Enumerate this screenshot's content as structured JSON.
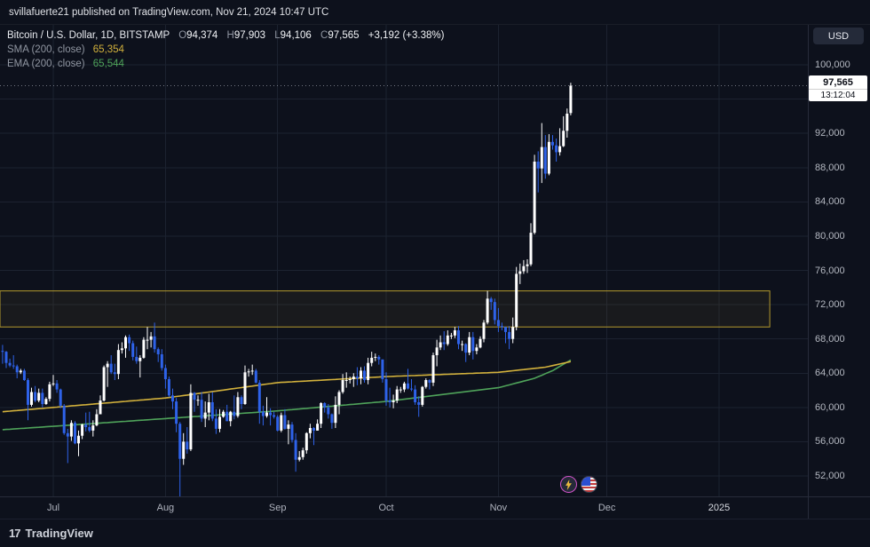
{
  "publish_bar": {
    "text": "svillafuerte21 published on TradingView.com, Nov 21, 2024 10:47 UTC"
  },
  "legend": {
    "symbol": "Bitcoin / U.S. Dollar, 1D, BITSTAMP",
    "ohlc": {
      "o_label": "O",
      "o_value": "94,374",
      "h_label": "H",
      "h_value": "97,903",
      "l_label": "L",
      "l_value": "94,106",
      "c_label": "C",
      "c_value": "97,565",
      "change": "+3,192 (+3.38%)"
    },
    "sma": {
      "label": "SMA (200, close)",
      "value": "65,354"
    },
    "ema": {
      "label": "EMA (200, close)",
      "value": "65,544"
    }
  },
  "axis": {
    "currency_button": "USD",
    "price_label": "97,565",
    "countdown": "13:12:04"
  },
  "footer": {
    "logo_mark": "17",
    "logo_text": "TradingView"
  },
  "chart_data": {
    "type": "candlestick",
    "title": "Bitcoin / U.S. Dollar, 1D, BITSTAMP",
    "start_date": "2024-06-17",
    "interval": "1D",
    "current_price": 97565,
    "last_candle": {
      "open": 94374,
      "high": 97903,
      "low": 94106,
      "close": 97565
    },
    "colors": {
      "up": "#ffffff",
      "down": "#2e62e9",
      "sma": "#d2b13c",
      "ema": "#4fa35a",
      "grid": "#1c2230",
      "priceline": "#8b8f9a"
    },
    "zone": {
      "top": 73600,
      "bottom": 69400,
      "end_index": 212,
      "stroke": "#b49a2d",
      "fill": "rgba(180,154,45,0.07)"
    },
    "y_grid": [
      52000,
      56000,
      60000,
      64000,
      68000,
      72000,
      76000,
      80000,
      84000,
      88000,
      92000,
      96000,
      100000
    ],
    "y_labels": [
      {
        "value": 100000,
        "label": "100,000"
      },
      {
        "value": 92000,
        "label": "92,000"
      },
      {
        "value": 88000,
        "label": "88,000"
      },
      {
        "value": 84000,
        "label": "84,000"
      },
      {
        "value": 80000,
        "label": "80,000"
      },
      {
        "value": 76000,
        "label": "76,000"
      },
      {
        "value": 72000,
        "label": "72,000"
      },
      {
        "value": 68000,
        "label": "68,000"
      },
      {
        "value": 64000,
        "label": "64,000"
      },
      {
        "value": 60000,
        "label": "60,000"
      },
      {
        "value": 56000,
        "label": "56,000"
      },
      {
        "value": 52000,
        "label": "52,000"
      }
    ],
    "x_ticks": [
      {
        "label": "Jul",
        "index": 14
      },
      {
        "label": "Aug",
        "index": 45
      },
      {
        "label": "Sep",
        "index": 76
      },
      {
        "label": "Oct",
        "index": 106
      },
      {
        "label": "Nov",
        "index": 137
      },
      {
        "label": "Dec",
        "index": 167
      },
      {
        "label": "2025",
        "index": 198,
        "is_year": true
      }
    ],
    "sma_points": [
      [
        0,
        59500
      ],
      [
        14,
        60000
      ],
      [
        45,
        61100
      ],
      [
        76,
        62900
      ],
      [
        106,
        63600
      ],
      [
        137,
        64100
      ],
      [
        150,
        64700
      ],
      [
        157,
        65354
      ]
    ],
    "ema_points": [
      [
        0,
        57400
      ],
      [
        14,
        57800
      ],
      [
        45,
        58700
      ],
      [
        76,
        59600
      ],
      [
        106,
        60700
      ],
      [
        137,
        62300
      ],
      [
        147,
        63400
      ],
      [
        152,
        64300
      ],
      [
        157,
        65544
      ]
    ],
    "candles": [
      [
        66600,
        67300,
        65100,
        66500
      ],
      [
        66500,
        66600,
        64600,
        65200
      ],
      [
        65200,
        65700,
        64700,
        64900
      ],
      [
        64900,
        66100,
        64500,
        64800
      ],
      [
        64800,
        65000,
        63400,
        64100
      ],
      [
        64100,
        64500,
        63900,
        64300
      ],
      [
        64300,
        64500,
        63100,
        63200
      ],
      [
        63200,
        63400,
        58500,
        60300
      ],
      [
        60300,
        62300,
        60100,
        61800
      ],
      [
        61800,
        62500,
        60600,
        60800
      ],
      [
        60800,
        62200,
        60600,
        61700
      ],
      [
        61700,
        62200,
        60000,
        60400
      ],
      [
        60400,
        61200,
        60300,
        61000
      ],
      [
        61000,
        63000,
        60700,
        62700
      ],
      [
        62700,
        63800,
        62500,
        62800
      ],
      [
        62800,
        63200,
        61700,
        62100
      ],
      [
        62100,
        62200,
        59900,
        60200
      ],
      [
        60200,
        60400,
        56800,
        57000
      ],
      [
        57000,
        57500,
        53500,
        56600
      ],
      [
        56600,
        58500,
        56100,
        58200
      ],
      [
        58200,
        58400,
        55700,
        55800
      ],
      [
        55800,
        57300,
        54300,
        56700
      ],
      [
        56700,
        58100,
        56300,
        58000
      ],
      [
        58000,
        59400,
        57200,
        57700
      ],
      [
        57700,
        59500,
        57100,
        57300
      ],
      [
        57300,
        58500,
        56600,
        57900
      ],
      [
        57900,
        59800,
        57800,
        59200
      ],
      [
        59200,
        61400,
        59200,
        60800
      ],
      [
        60800,
        64900,
        60700,
        64700
      ],
      [
        64700,
        65400,
        62400,
        65100
      ],
      [
        65100,
        66100,
        63900,
        64100
      ],
      [
        64100,
        65100,
        63200,
        63900
      ],
      [
        63900,
        67400,
        63300,
        66700
      ],
      [
        66700,
        67600,
        66300,
        66900
      ],
      [
        66900,
        68400,
        65800,
        68200
      ],
      [
        68200,
        68500,
        66600,
        67500
      ],
      [
        67500,
        67800,
        65500,
        65900
      ],
      [
        65900,
        67100,
        65100,
        65400
      ],
      [
        65400,
        66100,
        63500,
        65800
      ],
      [
        65800,
        68200,
        65700,
        67900
      ],
      [
        67900,
        69400,
        66800,
        67900
      ],
      [
        67900,
        68800,
        67000,
        68300
      ],
      [
        68300,
        69900,
        66400,
        66800
      ],
      [
        66800,
        67000,
        65300,
        66200
      ],
      [
        66200,
        66800,
        64300,
        64600
      ],
      [
        64600,
        65000,
        62200,
        63300
      ],
      [
        63300,
        63600,
        61200,
        61400
      ],
      [
        61400,
        62200,
        59800,
        60700
      ],
      [
        60700,
        61100,
        57100,
        58100
      ],
      [
        58100,
        58300,
        49100,
        54000
      ],
      [
        54000,
        57000,
        53300,
        56000
      ],
      [
        56000,
        57700,
        54600,
        55100
      ],
      [
        55100,
        62700,
        54900,
        61700
      ],
      [
        61700,
        61800,
        59500,
        60900
      ],
      [
        60900,
        61400,
        60200,
        60900
      ],
      [
        60900,
        61800,
        58300,
        58700
      ],
      [
        58700,
        60700,
        57700,
        59400
      ],
      [
        59400,
        61600,
        58500,
        60600
      ],
      [
        60600,
        61800,
        58400,
        58700
      ],
      [
        58700,
        59800,
        56900,
        57500
      ],
      [
        57500,
        59800,
        57100,
        58900
      ],
      [
        58900,
        59700,
        58800,
        59500
      ],
      [
        59500,
        60300,
        58400,
        58400
      ],
      [
        58400,
        59600,
        57800,
        59500
      ],
      [
        59500,
        61400,
        58600,
        59000
      ],
      [
        59000,
        61800,
        58800,
        61200
      ],
      [
        61200,
        61400,
        59800,
        60400
      ],
      [
        60400,
        64900,
        60300,
        64100
      ],
      [
        64100,
        64500,
        63600,
        64200
      ],
      [
        64200,
        65000,
        63800,
        64300
      ],
      [
        64300,
        64500,
        62800,
        62900
      ],
      [
        62900,
        63200,
        58100,
        59500
      ],
      [
        59500,
        60200,
        57900,
        59000
      ],
      [
        59000,
        61200,
        58800,
        59400
      ],
      [
        59400,
        59900,
        57900,
        59100
      ],
      [
        59100,
        59500,
        58700,
        58900
      ],
      [
        58900,
        59100,
        57200,
        57300
      ],
      [
        57300,
        59400,
        57100,
        59100
      ],
      [
        59100,
        59800,
        57400,
        57500
      ],
      [
        57500,
        58500,
        55700,
        58000
      ],
      [
        58000,
        58300,
        55900,
        56200
      ],
      [
        56200,
        57000,
        52500,
        53900
      ],
      [
        53900,
        54900,
        53700,
        54200
      ],
      [
        54200,
        55300,
        53900,
        55000
      ],
      [
        55000,
        57100,
        54600,
        57000
      ],
      [
        57000,
        58100,
        56400,
        57600
      ],
      [
        57600,
        57700,
        55600,
        57300
      ],
      [
        57300,
        58600,
        57300,
        58100
      ],
      [
        58100,
        60600,
        57600,
        60500
      ],
      [
        60500,
        60600,
        59400,
        60000
      ],
      [
        60000,
        60400,
        58700,
        59200
      ],
      [
        59200,
        59300,
        57500,
        58200
      ],
      [
        58200,
        61300,
        57600,
        60300
      ],
      [
        60300,
        62000,
        59200,
        61800
      ],
      [
        61800,
        63900,
        61600,
        63200
      ],
      [
        63200,
        64100,
        62300,
        63200
      ],
      [
        63200,
        63600,
        62800,
        63300
      ],
      [
        63300,
        64000,
        62400,
        63600
      ],
      [
        63600,
        64700,
        62600,
        63400
      ],
      [
        63400,
        64700,
        62700,
        64300
      ],
      [
        64300,
        64800,
        62900,
        63200
      ],
      [
        63200,
        65800,
        62700,
        65200
      ],
      [
        65200,
        66500,
        64800,
        65800
      ],
      [
        65800,
        66300,
        65400,
        65900
      ],
      [
        65900,
        66100,
        65000,
        65600
      ],
      [
        65600,
        65600,
        62900,
        63300
      ],
      [
        63300,
        64100,
        60200,
        60800
      ],
      [
        60800,
        62300,
        60000,
        60600
      ],
      [
        60600,
        61500,
        59900,
        60800
      ],
      [
        60800,
        62500,
        60500,
        62100
      ],
      [
        62100,
        62400,
        61700,
        62100
      ],
      [
        62100,
        63000,
        61800,
        62800
      ],
      [
        62800,
        64500,
        62100,
        62200
      ],
      [
        62200,
        63300,
        61900,
        62100
      ],
      [
        62100,
        62600,
        60300,
        60600
      ],
      [
        60600,
        61300,
        58900,
        60300
      ],
      [
        60300,
        62500,
        60100,
        62400
      ],
      [
        62400,
        63400,
        62200,
        63200
      ],
      [
        63200,
        63300,
        62100,
        62900
      ],
      [
        62900,
        66400,
        62500,
        66100
      ],
      [
        66100,
        67900,
        64800,
        67000
      ],
      [
        67000,
        68400,
        66700,
        67600
      ],
      [
        67600,
        68900,
        66700,
        67400
      ],
      [
        67400,
        69000,
        67200,
        68400
      ],
      [
        68400,
        68700,
        68000,
        68400
      ],
      [
        68400,
        69400,
        68100,
        69000
      ],
      [
        69000,
        69500,
        66800,
        67400
      ],
      [
        67400,
        67800,
        66600,
        67400
      ],
      [
        67400,
        67500,
        65300,
        66400
      ],
      [
        66400,
        68800,
        66100,
        68200
      ],
      [
        68200,
        68800,
        65600,
        66600
      ],
      [
        66600,
        67400,
        66200,
        67000
      ],
      [
        67000,
        68300,
        66900,
        68000
      ],
      [
        68000,
        70200,
        67600,
        69900
      ],
      [
        69900,
        73600,
        69700,
        72700
      ],
      [
        72700,
        72900,
        71400,
        72300
      ],
      [
        72300,
        72700,
        69700,
        70200
      ],
      [
        70200,
        71600,
        68800,
        69500
      ],
      [
        69500,
        69900,
        69000,
        69400
      ],
      [
        69400,
        69400,
        67500,
        68800
      ],
      [
        68800,
        69500,
        66800,
        68000
      ],
      [
        68000,
        70500,
        67500,
        69400
      ],
      [
        69400,
        76400,
        69000,
        75600
      ],
      [
        75600,
        76800,
        74400,
        75900
      ],
      [
        75900,
        77200,
        75600,
        76500
      ],
      [
        76500,
        77300,
        75700,
        76700
      ],
      [
        76700,
        81500,
        76500,
        80400
      ],
      [
        80400,
        89500,
        80200,
        88700
      ],
      [
        88700,
        89900,
        85100,
        87900
      ],
      [
        87900,
        93200,
        86200,
        90400
      ],
      [
        90400,
        91800,
        86700,
        87300
      ],
      [
        87300,
        91900,
        87100,
        91000
      ],
      [
        91000,
        91800,
        90100,
        90600
      ],
      [
        90600,
        91400,
        88700,
        89800
      ],
      [
        89800,
        92600,
        89400,
        90500
      ],
      [
        90500,
        94000,
        90400,
        92300
      ],
      [
        92300,
        94900,
        91500,
        94300
      ],
      [
        94374,
        97903,
        94106,
        97565
      ]
    ]
  }
}
